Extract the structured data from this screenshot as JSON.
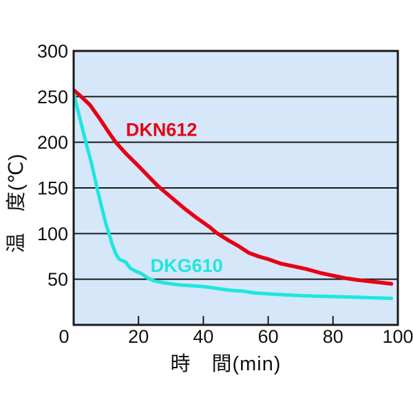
{
  "chart_data": {
    "type": "line",
    "title": "",
    "xlabel": "時　間(min)",
    "ylabel": "温　度(℃)",
    "xlim": [
      0,
      100
    ],
    "ylim": [
      0,
      300
    ],
    "x_ticks": [
      0,
      20,
      40,
      60,
      80,
      100
    ],
    "y_ticks": [
      50,
      100,
      150,
      200,
      250,
      300
    ],
    "grid": "horizontal-only",
    "legend_position": "inline-labels",
    "colors": {
      "plot_bg": "#D5E7F9",
      "grid": "#1a1a1a",
      "border": "#1a1a1a",
      "text": "#111111"
    },
    "series": [
      {
        "name": "DKN612",
        "color": "#E60013",
        "label_pos": [
          16.1,
          207
        ],
        "points": [
          [
            0,
            257
          ],
          [
            2,
            251
          ],
          [
            5,
            241
          ],
          [
            8,
            226
          ],
          [
            11,
            210
          ],
          [
            13,
            200
          ],
          [
            16,
            188
          ],
          [
            20,
            174
          ],
          [
            23,
            163
          ],
          [
            26,
            152
          ],
          [
            30,
            140
          ],
          [
            34,
            128
          ],
          [
            38,
            117
          ],
          [
            42,
            107
          ],
          [
            44,
            101
          ],
          [
            48,
            92
          ],
          [
            51,
            86
          ],
          [
            54,
            79
          ],
          [
            57,
            75
          ],
          [
            60,
            72
          ],
          [
            64,
            67
          ],
          [
            68,
            64
          ],
          [
            72,
            61
          ],
          [
            76,
            57
          ],
          [
            80,
            54
          ],
          [
            84,
            51
          ],
          [
            88,
            49
          ],
          [
            93,
            47
          ],
          [
            98,
            45
          ]
        ]
      },
      {
        "name": "DKG610",
        "color": "#1FE6DF",
        "label_pos": [
          23.7,
          58
        ],
        "points": [
          [
            0,
            253
          ],
          [
            1.5,
            232
          ],
          [
            3,
            211
          ],
          [
            4,
            197
          ],
          [
            5.5,
            177
          ],
          [
            7,
            153
          ],
          [
            8.5,
            131
          ],
          [
            10,
            110
          ],
          [
            11,
            99
          ],
          [
            12,
            87
          ],
          [
            13,
            78
          ],
          [
            14,
            72
          ],
          [
            15,
            70.5
          ],
          [
            16,
            69
          ],
          [
            16.6,
            66
          ],
          [
            17.5,
            62
          ],
          [
            19,
            59
          ],
          [
            21,
            56
          ],
          [
            23,
            51
          ],
          [
            25,
            48
          ],
          [
            28,
            46
          ],
          [
            32,
            44
          ],
          [
            36,
            43
          ],
          [
            40,
            42
          ],
          [
            44,
            40
          ],
          [
            48,
            38
          ],
          [
            52,
            37
          ],
          [
            56,
            35
          ],
          [
            60,
            34
          ],
          [
            65,
            33
          ],
          [
            70,
            32
          ],
          [
            75,
            31.5
          ],
          [
            80,
            31
          ],
          [
            85,
            30.5
          ],
          [
            90,
            30
          ],
          [
            94,
            29.5
          ],
          [
            98,
            29
          ]
        ]
      }
    ]
  }
}
